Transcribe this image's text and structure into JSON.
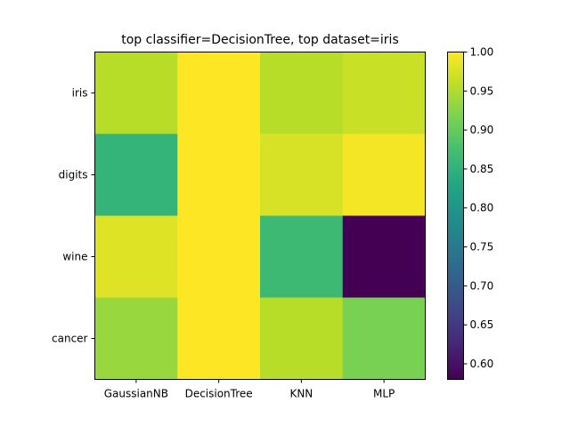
{
  "chart_data": {
    "type": "heatmap",
    "title": "top classifier=DecisionTree, top dataset=iris",
    "xlabel": "",
    "ylabel": "",
    "x_categories": [
      "GaussianNB",
      "DecisionTree",
      "KNN",
      "MLP"
    ],
    "y_categories": [
      "iris",
      "digits",
      "wine",
      "cancer"
    ],
    "values": [
      [
        0.955,
        1.0,
        0.955,
        0.965
      ],
      [
        0.855,
        1.0,
        0.975,
        0.995
      ],
      [
        0.98,
        1.0,
        0.865,
        0.58
      ],
      [
        0.935,
        1.0,
        0.955,
        0.915
      ]
    ],
    "colorbar": {
      "vmin": 0.58,
      "vmax": 1.0,
      "ticks": [
        0.6,
        0.65,
        0.7,
        0.75,
        0.8,
        0.85,
        0.9,
        0.95,
        1.0
      ],
      "tick_labels": [
        "0.60",
        "0.65",
        "0.70",
        "0.75",
        "0.80",
        "0.85",
        "0.90",
        "0.95",
        "1.00"
      ],
      "colormap": "viridis"
    },
    "grid": false
  }
}
